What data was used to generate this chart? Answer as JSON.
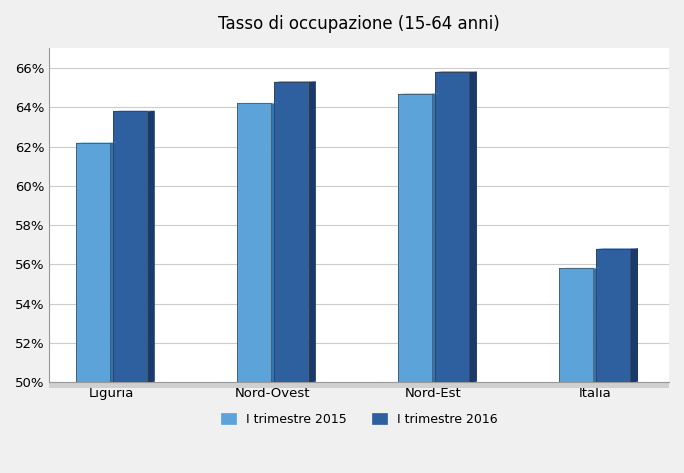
{
  "title": "Tasso di occupazione (15-64 anni)",
  "categories": [
    "Liguria",
    "Nord-Ovest",
    "Nord-Est",
    "Italia"
  ],
  "values_2015": [
    62.2,
    64.2,
    64.7,
    55.8
  ],
  "values_2016": [
    63.8,
    65.3,
    65.8,
    56.8
  ],
  "color_2015_face": "#5BA3D9",
  "color_2015_side": "#2E75B6",
  "color_2016_face": "#2E5F9E",
  "color_2016_side": "#1A3A6B",
  "color_2015_top": "#7ABFEE",
  "color_2016_top": "#3A6DAF",
  "ylim": [
    50,
    67
  ],
  "yticks": [
    50,
    52,
    54,
    56,
    58,
    60,
    62,
    64,
    66
  ],
  "background_fig": "#F0F0F0",
  "background_plot": "#FFFFFF",
  "bar_width": 0.28,
  "bar_depth": 0.06,
  "bar_gap": 0.02,
  "group_positions": [
    0.5,
    1.8,
    3.1,
    4.4
  ],
  "xlim": [
    0.0,
    5.0
  ],
  "title_fontsize": 12,
  "tick_fontsize": 9.5,
  "legend_fontsize": 9,
  "legend_labels": [
    "I trimestre 2015",
    "I trimestre 2016"
  ]
}
